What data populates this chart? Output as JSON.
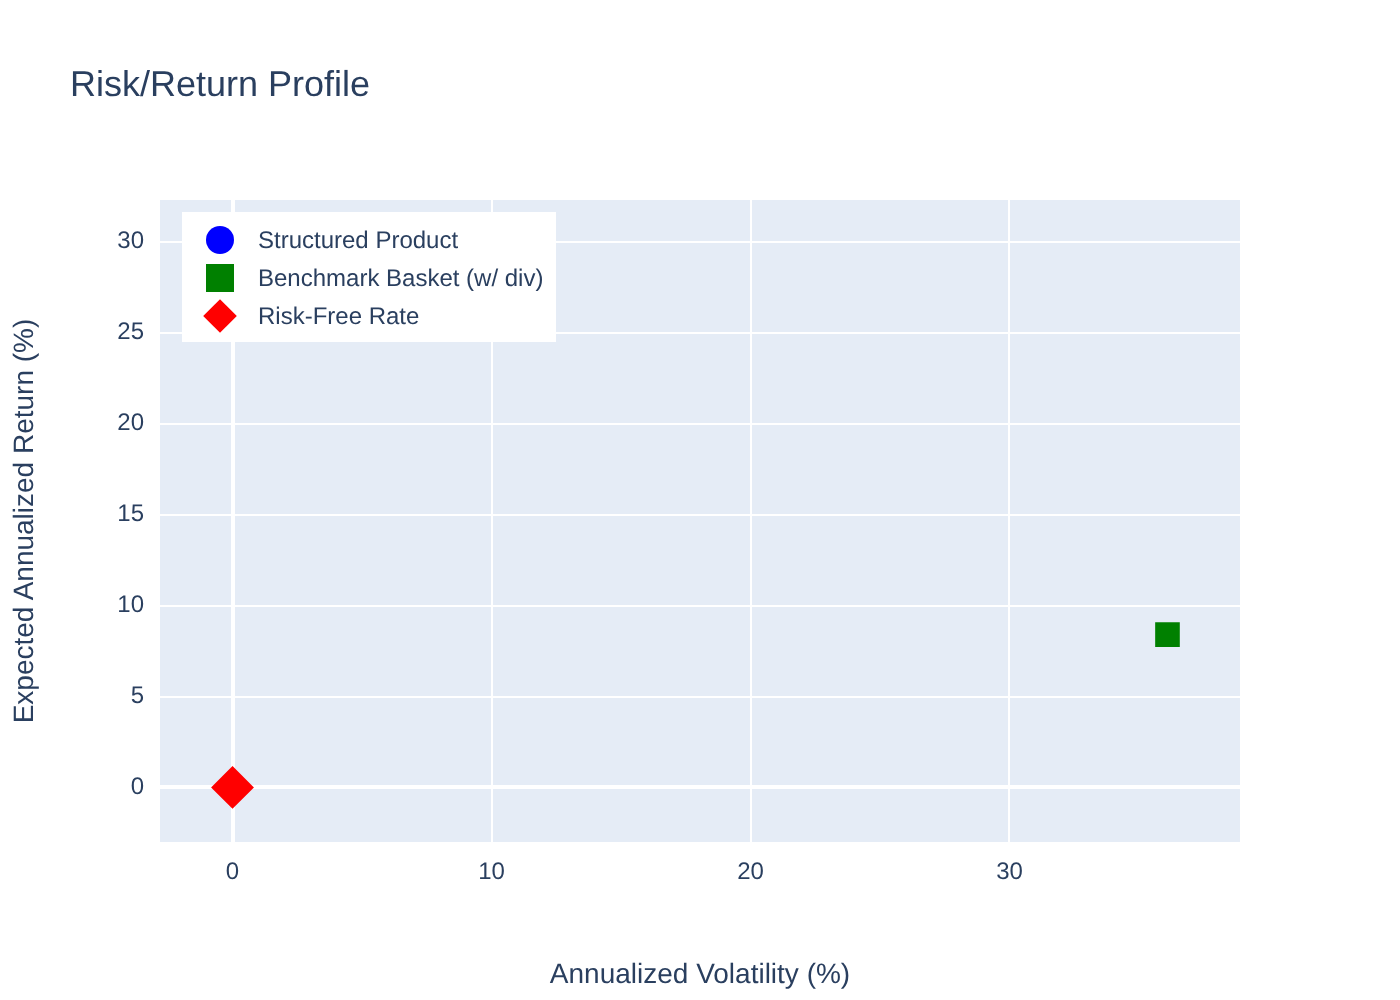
{
  "chart_data": {
    "type": "scatter",
    "title": "Risk/Return Profile",
    "xlabel": "Annualized Volatility (%)",
    "ylabel": "Expected Annualized Return (%)",
    "xlim": [
      -2.8,
      38.9
    ],
    "xticks": [
      0,
      10,
      20,
      30
    ],
    "ylim": [
      -3,
      32.3
    ],
    "yticks": [
      0,
      5,
      10,
      15,
      20,
      25,
      30
    ],
    "grid": true,
    "legend": "top left",
    "series": [
      {
        "name": "Structured Product",
        "color": "#0000ff",
        "marker": "circle",
        "x": [
          null
        ],
        "values": [
          null
        ]
      },
      {
        "name": "Benchmark Basket (w/ div)",
        "color": "#008000",
        "marker": "square",
        "x": [
          36.1
        ],
        "values": [
          8.4
        ]
      },
      {
        "name": "Risk-Free Rate",
        "color": "#ff0000",
        "marker": "diamond",
        "x": [
          0
        ],
        "values": [
          0
        ]
      }
    ]
  }
}
